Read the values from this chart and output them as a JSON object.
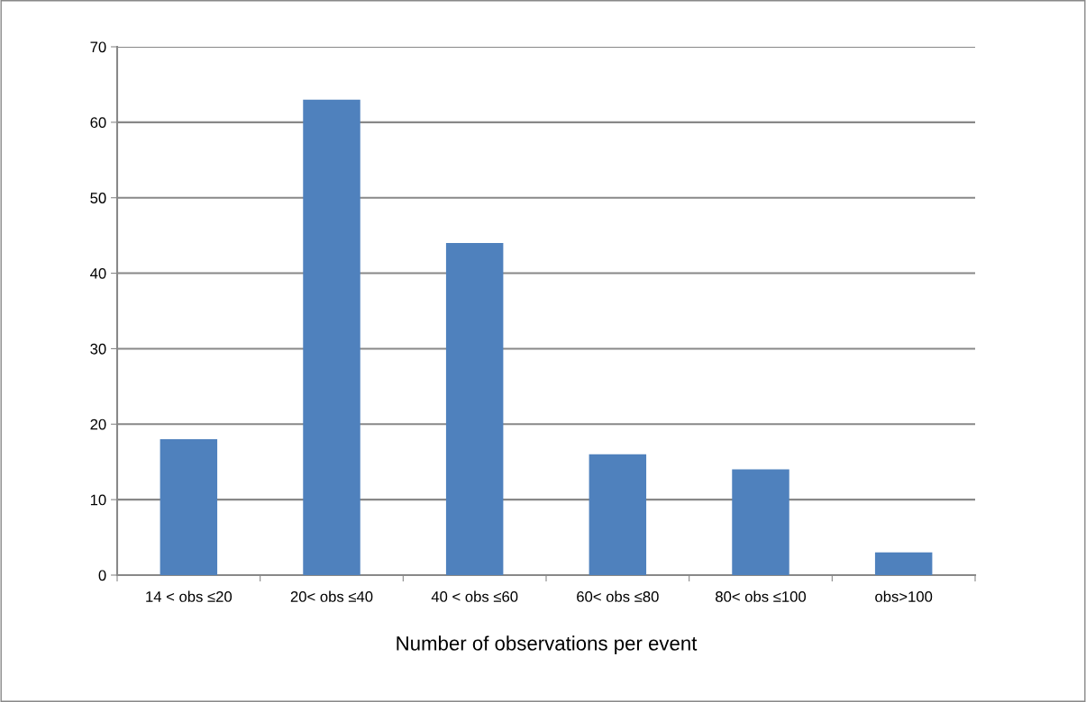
{
  "chart_data": {
    "type": "bar",
    "xlabel": "Number of observations per event",
    "categories": [
      "14 < obs ≤20",
      "20< obs ≤40",
      "40 < obs ≤60",
      "60< obs ≤80",
      "80< obs ≤100",
      "obs>100"
    ],
    "values": [
      18,
      63,
      44,
      16,
      14,
      3
    ],
    "color": "#4f81bd",
    "ylim": [
      0,
      70
    ],
    "yticks": [
      0,
      10,
      20,
      30,
      40,
      50,
      60,
      70
    ],
    "grid": "y"
  }
}
